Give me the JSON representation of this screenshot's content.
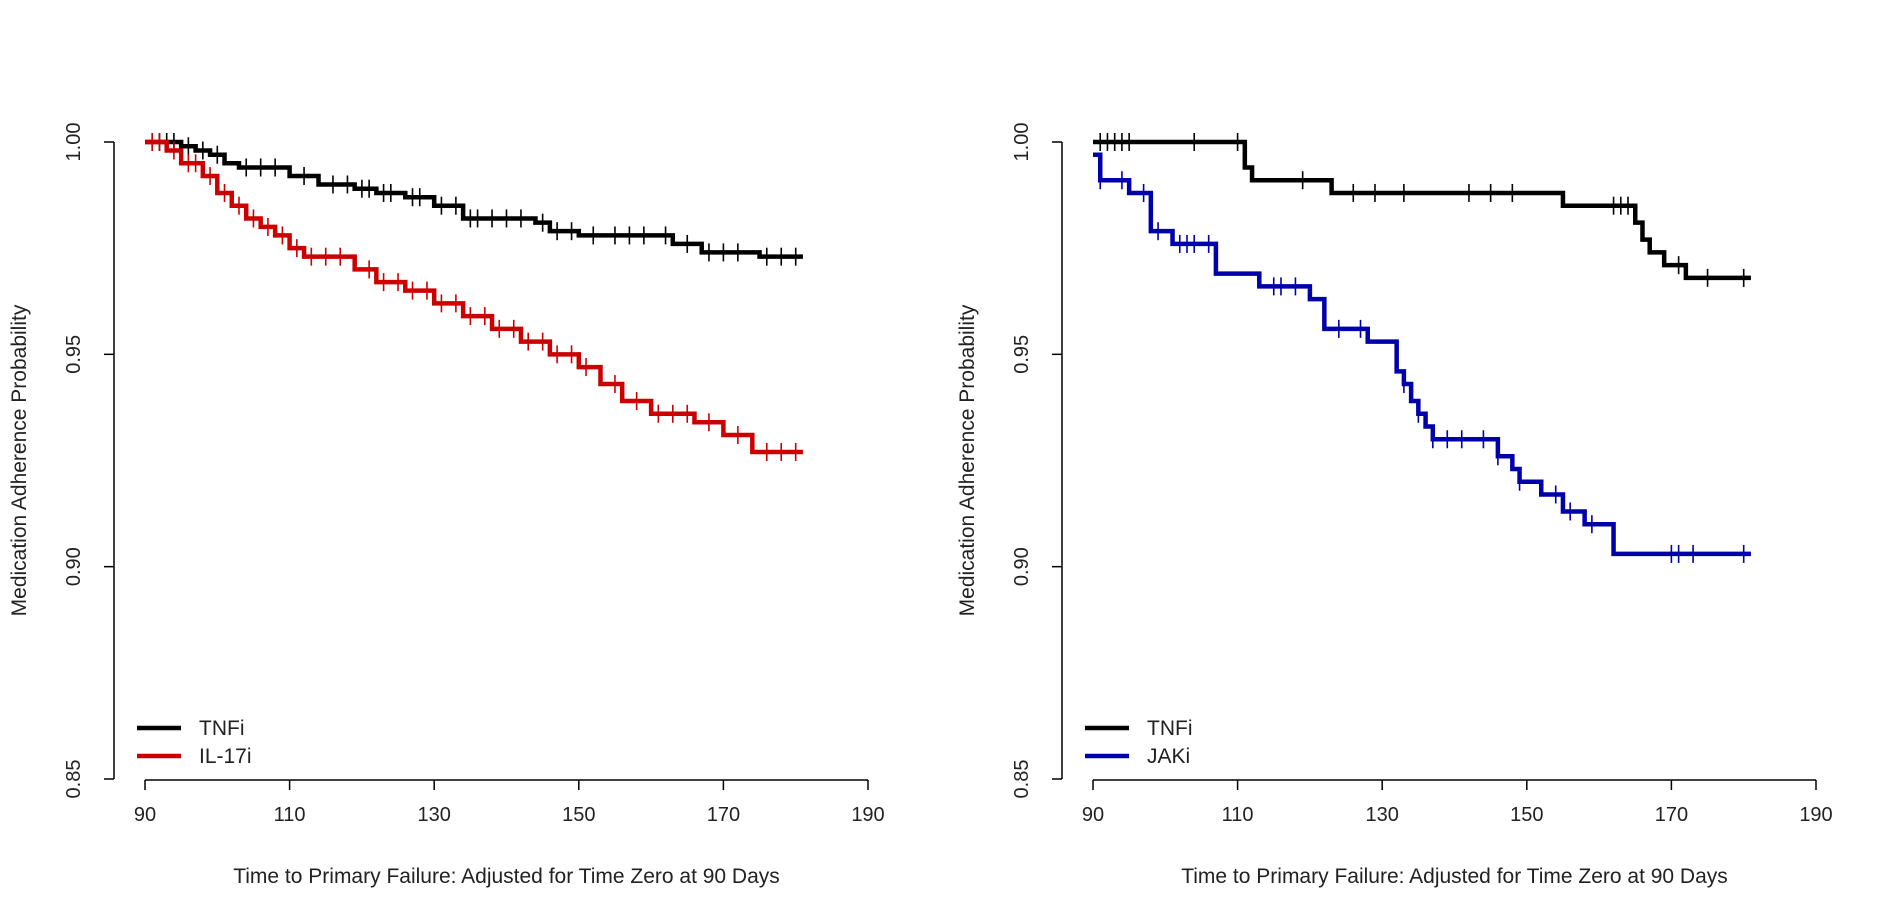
{
  "chart_data": [
    {
      "type": "line",
      "subtype": "kaplan-meier step curves with censor ticks",
      "xlabel": "Time to Primary Failure: Adjusted for Time Zero at 90 Days",
      "ylabel": "Medication Adherence Probability",
      "xlim": [
        90,
        190
      ],
      "ylim": [
        0.85,
        1.0
      ],
      "xticks": [
        "90",
        "110",
        "130",
        "150",
        "170",
        "190"
      ],
      "yticks": [
        "0.85",
        "0.90",
        "0.95",
        "1.00"
      ],
      "grid": false,
      "legend_position": "bottom-left",
      "series": [
        {
          "name": "TNFi",
          "color": "#000000",
          "x": [
            90,
            95,
            97,
            99,
            101,
            103,
            110,
            114,
            119,
            122,
            126,
            130,
            134,
            144,
            146,
            150,
            163,
            167,
            175,
            181
          ],
          "y": [
            1.0,
            0.999,
            0.998,
            0.997,
            0.995,
            0.994,
            0.992,
            0.99,
            0.989,
            0.988,
            0.987,
            0.985,
            0.982,
            0.981,
            0.979,
            0.978,
            0.976,
            0.974,
            0.973,
            0.973
          ],
          "censor_x": [
            91,
            92,
            93,
            94,
            96,
            98,
            100,
            104,
            106,
            108,
            112,
            116,
            118,
            120,
            121,
            123,
            124,
            127,
            128,
            131,
            133,
            135,
            136,
            138,
            140,
            142,
            145,
            147,
            149,
            152,
            155,
            157,
            159,
            162,
            165,
            168,
            170,
            172,
            176,
            178,
            180
          ]
        },
        {
          "name": "IL-17i",
          "color": "#cc0000",
          "x": [
            90,
            93,
            95,
            98,
            100,
            102,
            104,
            106,
            108,
            110,
            112,
            119,
            122,
            126,
            130,
            134,
            138,
            142,
            146,
            150,
            153,
            156,
            160,
            166,
            170,
            174,
            181
          ],
          "y": [
            1.0,
            0.998,
            0.995,
            0.992,
            0.988,
            0.985,
            0.982,
            0.98,
            0.978,
            0.975,
            0.973,
            0.97,
            0.967,
            0.965,
            0.962,
            0.959,
            0.956,
            0.953,
            0.95,
            0.947,
            0.943,
            0.939,
            0.936,
            0.934,
            0.931,
            0.927,
            0.927
          ],
          "censor_x": [
            91,
            92,
            94,
            96,
            97,
            99,
            101,
            103,
            105,
            107,
            109,
            111,
            113,
            115,
            117,
            121,
            123,
            125,
            127,
            129,
            131,
            133,
            135,
            137,
            139,
            141,
            143,
            145,
            147,
            149,
            151,
            155,
            158,
            161,
            163,
            165,
            168,
            172,
            176,
            178,
            180
          ]
        }
      ]
    },
    {
      "type": "line",
      "subtype": "kaplan-meier step curves with censor ticks",
      "xlabel": "Time to Primary Failure: Adjusted for Time Zero at 90 Days",
      "ylabel": "Medication Adherence Probability",
      "xlim": [
        90,
        190
      ],
      "ylim": [
        0.85,
        1.0
      ],
      "xticks": [
        "90",
        "110",
        "130",
        "150",
        "170",
        "190"
      ],
      "yticks": [
        "0.85",
        "0.90",
        "0.95",
        "1.00"
      ],
      "grid": false,
      "legend_position": "bottom-left",
      "series": [
        {
          "name": "TNFi",
          "color": "#000000",
          "x": [
            90,
            111,
            112,
            123,
            155,
            165,
            166,
            167,
            169,
            172,
            174,
            181
          ],
          "y": [
            1.0,
            0.994,
            0.991,
            0.988,
            0.985,
            0.981,
            0.977,
            0.974,
            0.971,
            0.968,
            0.968,
            0.968
          ],
          "censor_x": [
            91,
            92,
            93,
            94,
            95,
            104,
            110,
            119,
            126,
            129,
            133,
            142,
            145,
            148,
            162,
            163,
            164,
            171,
            175,
            180
          ]
        },
        {
          "name": "JAKi",
          "color": "#0000aa",
          "x": [
            90,
            91,
            95,
            98,
            101,
            107,
            113,
            120,
            122,
            128,
            132,
            133,
            134,
            135,
            136,
            137,
            146,
            148,
            149,
            152,
            155,
            158,
            162,
            181
          ],
          "y": [
            0.997,
            0.991,
            0.988,
            0.979,
            0.976,
            0.969,
            0.966,
            0.963,
            0.956,
            0.953,
            0.946,
            0.943,
            0.939,
            0.936,
            0.933,
            0.93,
            0.926,
            0.923,
            0.92,
            0.917,
            0.913,
            0.91,
            0.903,
            0.903
          ],
          "censor_x": [
            91,
            94,
            97,
            99,
            102,
            103,
            104,
            106,
            115,
            116,
            118,
            124,
            127,
            133,
            135,
            137,
            139,
            141,
            144,
            146,
            149,
            154,
            156,
            159,
            170,
            171,
            173,
            180
          ]
        }
      ]
    }
  ]
}
